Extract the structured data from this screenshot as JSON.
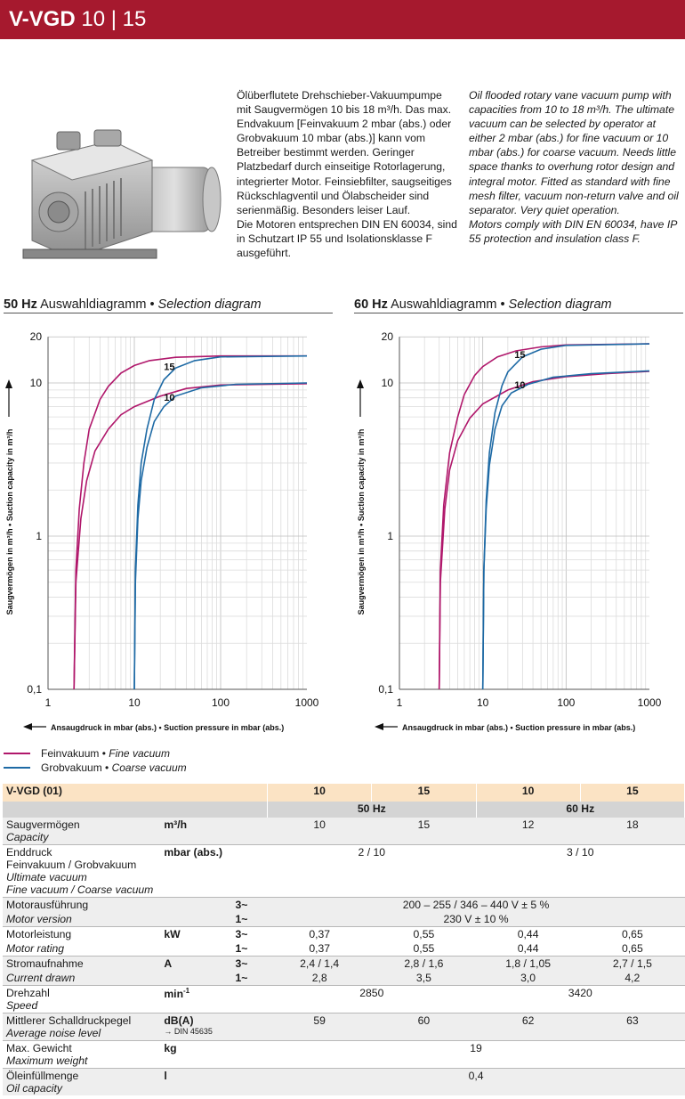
{
  "header": {
    "product": "V-VGD",
    "sizes": "10 | 15"
  },
  "description": {
    "de": "Ölüberflutete Drehschieber-Vakuumpumpe mit Saugvermögen 10 bis 18 m³/h. Das max. Endvakuum [Feinvakuum 2 mbar (abs.) oder Grobvakuum 10 mbar (abs.)] kann vom Betreiber bestimmt werden. Geringer Platzbedarf durch einseitige Rotorlagerung, integrierter Motor. Feinsiebfilter, saugseitiges Rückschlagventil und Ölabscheider sind serienmäßig. Besonders leiser Lauf.",
    "de2": "Die Motoren entsprechen DIN EN 60034, sind in Schutzart IP 55 und Isolationsklasse F ausgeführt.",
    "en": "Oil flooded rotary vane vacuum pump with capacities from 10 to 18 m³/h. The ultimate vacuum can be selected by operator at either 2 mbar (abs.) for fine vacuum or 10 mbar (abs.) for coarse vacuum. Needs little space thanks to overhung rotor design and integral motor. Fitted as standard with fine mesh filter, vacuum non-return valve and oil separator. Very quiet operation.",
    "en2": "Motors comply with DIN EN 60034, have IP 55 protection and insulation class F."
  },
  "charts": {
    "hz50": {
      "freq": "50 Hz",
      "title_de": "Auswahldiagramm",
      "sep": "•",
      "title_en": "Selection diagram"
    },
    "hz60": {
      "freq": "60 Hz",
      "title_de": "Auswahldiagramm",
      "sep": "•",
      "title_en": "Selection diagram"
    },
    "ylabel": "Saugvermögen in m³/h • Suction capacity in m³/h",
    "xlabel": "Ansaugdruck in mbar (abs.) • Suction pressure in mbar (abs.)"
  },
  "chart_data": [
    {
      "type": "line",
      "title": "50 Hz Auswahldiagramm • Selection diagram",
      "xlabel": "Ansaugdruck in mbar (abs.) • Suction pressure in mbar (abs.)",
      "ylabel": "Saugvermögen in m³/h • Suction capacity in m³/h",
      "x_scale": "log",
      "y_scale": "log",
      "xlim": [
        1,
        1000
      ],
      "ylim": [
        0.1,
        20
      ],
      "x_ticks": [
        "1",
        "10",
        "100",
        "1000"
      ],
      "y_ticks": [
        "0,1",
        "1",
        "10",
        "20"
      ],
      "grid": true,
      "curve_labels": [
        "15",
        "10"
      ],
      "series": [
        {
          "name": "Feinvakuum • Fine vacuum",
          "label": "15",
          "color": "#b0176b",
          "points": [
            [
              2,
              0.1
            ],
            [
              2.1,
              0.6
            ],
            [
              2.3,
              1.5
            ],
            [
              2.6,
              3
            ],
            [
              3,
              5
            ],
            [
              4,
              7.8
            ],
            [
              5,
              9.5
            ],
            [
              7,
              11.6
            ],
            [
              10,
              13
            ],
            [
              15,
              14
            ],
            [
              30,
              14.7
            ],
            [
              100,
              15
            ],
            [
              1000,
              15
            ]
          ]
        },
        {
          "name": "Feinvakuum • Fine vacuum",
          "label": "10",
          "color": "#b0176b",
          "points": [
            [
              2,
              0.1
            ],
            [
              2.1,
              0.5
            ],
            [
              2.4,
              1.3
            ],
            [
              2.8,
              2.3
            ],
            [
              3.5,
              3.6
            ],
            [
              5,
              5
            ],
            [
              7,
              6.2
            ],
            [
              10,
              7
            ],
            [
              20,
              8.2
            ],
            [
              40,
              9.2
            ],
            [
              100,
              9.7
            ],
            [
              1000,
              9.9
            ]
          ]
        },
        {
          "name": "Grobvakuum • Coarse vacuum",
          "label": "15",
          "color": "#1e6aa5",
          "points": [
            [
              10,
              0.1
            ],
            [
              10.3,
              0.6
            ],
            [
              11,
              1.6
            ],
            [
              12,
              3
            ],
            [
              14,
              5
            ],
            [
              17,
              7.8
            ],
            [
              22,
              10.5
            ],
            [
              30,
              12.5
            ],
            [
              50,
              14
            ],
            [
              100,
              14.8
            ],
            [
              1000,
              15
            ]
          ]
        },
        {
          "name": "Grobvakuum • Coarse vacuum",
          "label": "10",
          "color": "#1e6aa5",
          "points": [
            [
              10,
              0.1
            ],
            [
              10.3,
              0.5
            ],
            [
              11,
              1.3
            ],
            [
              12,
              2.3
            ],
            [
              14,
              3.8
            ],
            [
              17,
              5.6
            ],
            [
              22,
              7
            ],
            [
              30,
              8.2
            ],
            [
              60,
              9.3
            ],
            [
              150,
              9.8
            ],
            [
              1000,
              10
            ]
          ]
        }
      ]
    },
    {
      "type": "line",
      "title": "60 Hz Auswahldiagramm • Selection diagram",
      "xlabel": "Ansaugdruck in mbar (abs.) • Suction pressure in mbar (abs.)",
      "ylabel": "Saugvermögen in m³/h • Suction capacity in m³/h",
      "x_scale": "log",
      "y_scale": "log",
      "xlim": [
        1,
        1000
      ],
      "ylim": [
        0.1,
        20
      ],
      "x_ticks": [
        "1",
        "10",
        "100",
        "1000"
      ],
      "y_ticks": [
        "0,1",
        "1",
        "10",
        "20"
      ],
      "grid": true,
      "curve_labels": [
        "15",
        "10"
      ],
      "series": [
        {
          "name": "Feinvakuum • Fine vacuum",
          "label": "15",
          "color": "#b0176b",
          "points": [
            [
              3,
              0.1
            ],
            [
              3.1,
              0.6
            ],
            [
              3.4,
              1.6
            ],
            [
              4,
              3.5
            ],
            [
              5,
              6
            ],
            [
              6,
              8.4
            ],
            [
              8,
              11.2
            ],
            [
              10,
              12.8
            ],
            [
              15,
              14.8
            ],
            [
              25,
              16.2
            ],
            [
              50,
              17.2
            ],
            [
              100,
              17.7
            ],
            [
              1000,
              18
            ]
          ]
        },
        {
          "name": "Feinvakuum • Fine vacuum",
          "label": "10",
          "color": "#b0176b",
          "points": [
            [
              3,
              0.1
            ],
            [
              3.1,
              0.5
            ],
            [
              3.5,
              1.5
            ],
            [
              4,
              2.7
            ],
            [
              5,
              4.2
            ],
            [
              7,
              5.9
            ],
            [
              10,
              7.3
            ],
            [
              20,
              9
            ],
            [
              40,
              10.2
            ],
            [
              100,
              11
            ],
            [
              300,
              11.5
            ],
            [
              1000,
              11.9
            ]
          ]
        },
        {
          "name": "Grobvakuum • Coarse vacuum",
          "label": "15",
          "color": "#1e6aa5",
          "points": [
            [
              10,
              0.1
            ],
            [
              10.3,
              0.6
            ],
            [
              11,
              1.7
            ],
            [
              12,
              3.5
            ],
            [
              14,
              6.4
            ],
            [
              17,
              9.6
            ],
            [
              20,
              11.8
            ],
            [
              30,
              14.8
            ],
            [
              50,
              16.6
            ],
            [
              100,
              17.6
            ],
            [
              1000,
              18
            ]
          ]
        },
        {
          "name": "Grobvakuum • Coarse vacuum",
          "label": "10",
          "color": "#1e6aa5",
          "points": [
            [
              10,
              0.1
            ],
            [
              10.3,
              0.6
            ],
            [
              11,
              1.5
            ],
            [
              12,
              2.9
            ],
            [
              14,
              5
            ],
            [
              17,
              7.1
            ],
            [
              22,
              8.6
            ],
            [
              35,
              9.8
            ],
            [
              70,
              10.9
            ],
            [
              200,
              11.5
            ],
            [
              1000,
              12
            ]
          ]
        }
      ]
    }
  ],
  "legend": [
    {
      "de": "Feinvakuum",
      "sep": "•",
      "en": "Fine vacuum",
      "color": "#b0176b"
    },
    {
      "de": "Grobvakuum",
      "sep": "•",
      "en": "Coarse vacuum",
      "color": "#1e6aa5"
    }
  ],
  "table": {
    "model": "V-VGD (01)",
    "sizes": [
      "10",
      "15",
      "10",
      "15"
    ],
    "freqs": [
      "50 Hz",
      "60 Hz"
    ],
    "rows": {
      "capacity": {
        "de": "Saugvermögen",
        "en": "Capacity",
        "unit": "m³/h",
        "v": [
          "10",
          "15",
          "12",
          "18"
        ]
      },
      "ultimate": {
        "de": "Enddruck",
        "de2": "Feinvakuum / Grobvakuum",
        "en": "Ultimate vacuum",
        "en2": "Fine vacuum / Coarse vacuum",
        "unit": "mbar (abs.)",
        "v50": "2 / 10",
        "v60": "3 / 10"
      },
      "motor": {
        "de": "Motorausführung",
        "en": "Motor version",
        "p3": "3~",
        "p1": "1~",
        "v3": "200 – 255 / 346 – 440 V ± 5 %",
        "v1": "230 V ± 10 %"
      },
      "power": {
        "de": "Motorleistung",
        "en": "Motor rating",
        "unit": "kW",
        "p3": "3~",
        "p1": "1~",
        "v3": [
          "0,37",
          "0,55",
          "0,44",
          "0,65"
        ],
        "v1": [
          "0,37",
          "0,55",
          "0,44",
          "0,65"
        ]
      },
      "current": {
        "de": "Stromaufnahme",
        "en": "Current drawn",
        "unit": "A",
        "p3": "3~",
        "p1": "1~",
        "v3": [
          "2,4 / 1,4",
          "2,8 / 1,6",
          "1,8 / 1,05",
          "2,7 / 1,5"
        ],
        "v1": [
          "2,8",
          "3,5",
          "3,0",
          "4,2"
        ]
      },
      "speed": {
        "de": "Drehzahl",
        "en": "Speed",
        "unit": "min",
        "unit_sup": "-1",
        "v50": "2850",
        "v60": "3420"
      },
      "noise": {
        "de": "Mittlerer Schalldruckpegel",
        "en": "Average noise level",
        "unit": "dB(A)",
        "unit_note": "→ DIN 45635",
        "v": [
          "59",
          "60",
          "62",
          "63"
        ]
      },
      "weight": {
        "de": "Max. Gewicht",
        "en": "Maximum weight",
        "unit": "kg",
        "v": "19"
      },
      "oil": {
        "de": "Öleinfüllmenge",
        "en": "Oil capacity",
        "unit": "l",
        "v": "0,4"
      }
    }
  }
}
